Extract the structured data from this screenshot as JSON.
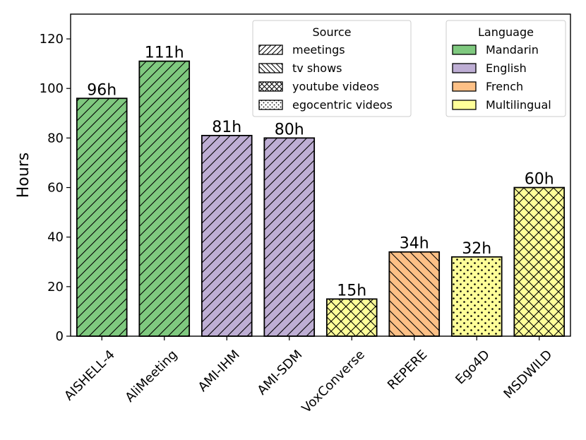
{
  "chart_data": {
    "type": "bar",
    "ylabel": "Hours",
    "ylim": [
      0,
      130
    ],
    "yticks": [
      0,
      20,
      40,
      60,
      80,
      100,
      120
    ],
    "categories": [
      "AISHELL-4",
      "AliMeeting",
      "AMI-IHM",
      "AMI-SDM",
      "VoxConverse",
      "REPERE",
      "Ego4D",
      "MSDWILD"
    ],
    "values": [
      96,
      111,
      81,
      80,
      15,
      34,
      32,
      60
    ],
    "value_labels": [
      "96h",
      "111h",
      "81h",
      "80h",
      "15h",
      "34h",
      "32h",
      "60h"
    ],
    "languages": [
      "Mandarin",
      "Mandarin",
      "English",
      "English",
      "Multilingual",
      "French",
      "Multilingual",
      "Multilingual"
    ],
    "sources": [
      "meetings",
      "meetings",
      "meetings",
      "meetings",
      "youtube videos",
      "tv shows",
      "egocentric videos",
      "youtube videos"
    ],
    "source_legend": {
      "title": "Source",
      "placement": "top-center",
      "items": [
        {
          "label": "meetings",
          "pattern": "forward-hatch"
        },
        {
          "label": "tv shows",
          "pattern": "back-hatch"
        },
        {
          "label": "youtube videos",
          "pattern": "cross-hatch"
        },
        {
          "label": "egocentric videos",
          "pattern": "dots"
        }
      ]
    },
    "language_legend": {
      "title": "Language",
      "placement": "top-right",
      "items": [
        {
          "label": "Mandarin",
          "color": "#7fc97f"
        },
        {
          "label": "English",
          "color": "#beaed4"
        },
        {
          "label": "French",
          "color": "#fdc086"
        },
        {
          "label": "Multilingual",
          "color": "#ffff99"
        }
      ]
    },
    "grid": false
  }
}
